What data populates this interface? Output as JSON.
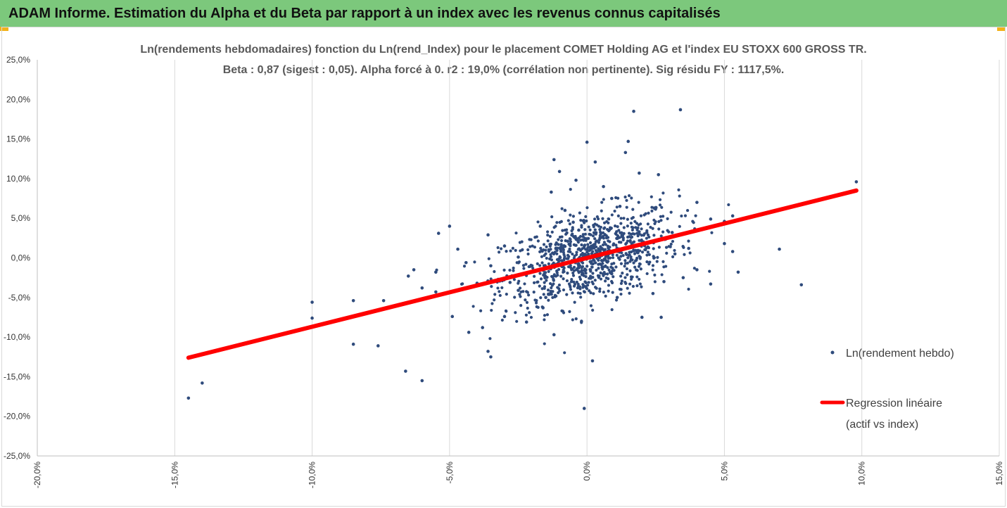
{
  "banner": {
    "title": "ADAM Informe. Estimation du Alpha et du Beta par rapport à un index avec les revenus connus capitalisés"
  },
  "chart_data": {
    "type": "scatter",
    "title": "Ln(rendements hebdomadaires) fonction du Ln(rend_Index) pour le placement COMET Holding AG et l'index EU STOXX 600 GROSS TR.",
    "subtitle": "Beta : 0,87 (sigest : 0,05). Alpha forcé à 0. r2 : 19,0% (corrélation non pertinente). Sig résidu FY : 1117,5%.",
    "xlabel": "",
    "ylabel": "",
    "xlim": [
      -0.2,
      0.15
    ],
    "ylim": [
      -0.25,
      0.25
    ],
    "x_ticks": [
      -0.2,
      -0.15,
      -0.1,
      -0.05,
      0.0,
      0.05,
      0.1,
      0.15
    ],
    "x_tick_labels": [
      "-20,0%",
      "-15,0%",
      "-10,0%",
      "-5,0%",
      "0,0%",
      "5,0%",
      "10,0%",
      "15,0%"
    ],
    "y_ticks": [
      0.25,
      0.2,
      0.15,
      0.1,
      0.05,
      0.0,
      -0.05,
      -0.1,
      -0.15,
      -0.2,
      -0.25
    ],
    "y_tick_labels": [
      "25,0%",
      "20,0%",
      "15,0%",
      "10,0%",
      "5,0%",
      "0,0%",
      "-5,0%",
      "-10,0%",
      "-15,0%",
      "-20,0%",
      "-25,0%"
    ],
    "grid": "vertical",
    "legend_position": "right",
    "colors": {
      "points": "#2f4b7c",
      "regression": "#ff0000"
    },
    "series": [
      {
        "name": "Ln(rendement hebdo)",
        "kind": "scatter",
        "points": [
          [
            -0.145,
            -0.177
          ],
          [
            -0.14,
            -0.158
          ],
          [
            -0.14,
            -0.121
          ],
          [
            -0.1,
            -0.056
          ],
          [
            -0.1,
            -0.076
          ],
          [
            -0.085,
            -0.054
          ],
          [
            -0.085,
            -0.109
          ],
          [
            -0.076,
            -0.111
          ],
          [
            -0.074,
            -0.054
          ],
          [
            -0.066,
            -0.143
          ],
          [
            -0.06,
            -0.155
          ],
          [
            -0.06,
            -0.038
          ],
          [
            -0.065,
            -0.023
          ],
          [
            -0.063,
            -0.015
          ],
          [
            -0.055,
            -0.043
          ],
          [
            -0.055,
            -0.018
          ],
          [
            -0.054,
            0.031
          ],
          [
            -0.05,
            0.04
          ],
          [
            -0.047,
            0.011
          ],
          [
            -0.049,
            -0.074
          ],
          [
            -0.044,
            -0.006
          ],
          [
            -0.043,
            -0.094
          ],
          [
            -0.038,
            -0.088
          ],
          [
            -0.036,
            -0.118
          ],
          [
            -0.035,
            -0.125
          ],
          [
            -0.036,
            0.029
          ],
          [
            -0.035,
            -0.01
          ],
          [
            -0.03,
            -0.074
          ],
          [
            -0.03,
            0.015
          ],
          [
            -0.028,
            -0.031
          ],
          [
            -0.025,
            -0.041
          ],
          [
            -0.022,
            -0.081
          ],
          [
            -0.02,
            -0.01
          ],
          [
            -0.017,
            0.04
          ],
          [
            -0.015,
            -0.05
          ],
          [
            -0.012,
            0.124
          ],
          [
            -0.01,
            0.109
          ],
          [
            -0.013,
            0.083
          ],
          [
            -0.012,
            -0.097
          ],
          [
            -0.008,
            0.06
          ],
          [
            -0.005,
            0.045
          ],
          [
            -0.004,
            0.098
          ],
          [
            -0.002,
            -0.08
          ],
          [
            -0.001,
            -0.19
          ],
          [
            0.0,
            0.146
          ],
          [
            0.003,
            0.121
          ],
          [
            0.002,
            -0.13
          ],
          [
            0.006,
            0.09
          ],
          [
            0.009,
            0.075
          ],
          [
            0.014,
            0.133
          ],
          [
            0.015,
            0.147
          ],
          [
            0.017,
            0.185
          ],
          [
            0.019,
            0.107
          ],
          [
            0.026,
            0.105
          ],
          [
            0.034,
            0.187
          ],
          [
            0.02,
            -0.075
          ],
          [
            0.027,
            -0.075
          ],
          [
            0.04,
            0.07
          ],
          [
            0.045,
            0.049
          ],
          [
            0.05,
            0.046
          ],
          [
            0.053,
            0.053
          ],
          [
            0.05,
            0.018
          ],
          [
            0.053,
            0.008
          ],
          [
            0.055,
            -0.018
          ],
          [
            0.07,
            0.011
          ],
          [
            0.078,
            -0.034
          ],
          [
            0.098,
            0.096
          ],
          [
            0.062,
            0.054
          ],
          [
            0.045,
            -0.033
          ],
          [
            0.04,
            -0.015
          ],
          [
            0.035,
            -0.025
          ],
          [
            0.032,
            0.005
          ],
          [
            0.028,
            -0.03
          ],
          [
            -0.007,
            0.021
          ],
          [
            -0.025,
            0.001
          ],
          [
            0.011,
            -0.05
          ],
          [
            -0.016,
            -0.063
          ],
          [
            0.024,
            -0.045
          ],
          [
            0.037,
            0.012
          ],
          [
            -0.04,
            -0.032
          ],
          [
            0.012,
            0.065
          ],
          [
            -0.003,
            0.035
          ],
          [
            0.009,
            -0.02
          ],
          [
            0.031,
            0.032
          ]
        ]
      },
      {
        "name": "Regression linéaire",
        "name_line2": "(actif vs index)",
        "kind": "line",
        "points": [
          [
            -0.145,
            -0.126
          ],
          [
            0.098,
            0.085
          ]
        ]
      }
    ]
  }
}
